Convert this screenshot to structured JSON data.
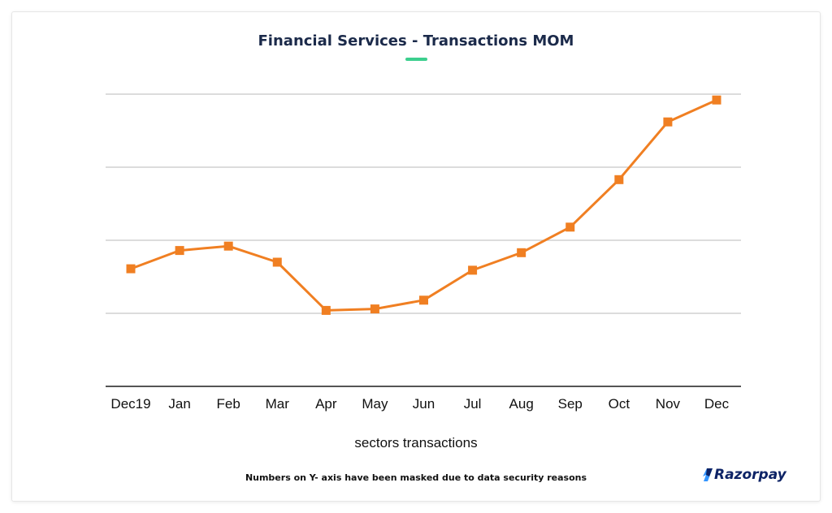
{
  "title": "Financial Services - Transactions MOM",
  "footnote": "Numbers on Y- axis have been masked due to data security reasons",
  "brand": "Razorpay",
  "colors": {
    "line": "#f07f22",
    "marker": "#f07f22",
    "grid": "#c8c8c8",
    "axis": "#555555",
    "accent": "#3ccf8e",
    "title": "#1b2a4a",
    "brand": "#0d2366",
    "brand_mark": "#3395ff"
  },
  "chart_data": {
    "type": "line",
    "title": "Financial Services - Transactions MOM",
    "xlabel": "sectors transactions",
    "ylabel": "",
    "categories": [
      "Dec19",
      "Jan",
      "Feb",
      "Mar",
      "Apr",
      "May",
      "Jun",
      "Jul",
      "Aug",
      "Sep",
      "Oct",
      "Nov",
      "Dec"
    ],
    "series": [
      {
        "values": [
          1.61,
          1.86,
          1.92,
          1.7,
          1.04,
          1.06,
          1.18,
          1.59,
          1.83,
          2.18,
          2.83,
          3.62,
          3.92
        ]
      }
    ],
    "ylim": [
      0,
      4
    ],
    "yticks_masked": true,
    "grid": true,
    "legend": "none"
  }
}
